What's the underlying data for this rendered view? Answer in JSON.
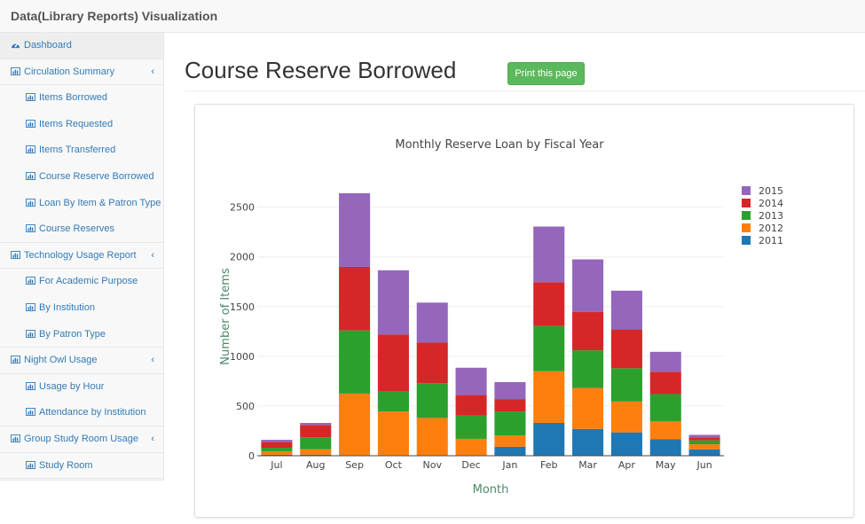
{
  "app": {
    "brand": "Data(Library Reports) Visualization"
  },
  "sidebar": {
    "items": [
      {
        "label": "Dashboard",
        "level": "top",
        "icon": "dashboard-icon"
      },
      {
        "label": "Circulation Summary",
        "level": "top",
        "icon": "bar-chart-icon",
        "caret": "‹"
      },
      {
        "label": "Items Borrowed",
        "level": "sub",
        "icon": "bar-chart-icon"
      },
      {
        "label": "Items Requested",
        "level": "sub",
        "icon": "bar-chart-icon"
      },
      {
        "label": "Items Transferred",
        "level": "sub",
        "icon": "bar-chart-icon"
      },
      {
        "label": "Course Reserve Borrowed",
        "level": "sub",
        "icon": "bar-chart-icon"
      },
      {
        "label": "Loan By Item & Patron Type",
        "level": "sub",
        "icon": "bar-chart-icon"
      },
      {
        "label": "Course Reserves",
        "level": "sub",
        "icon": "bar-chart-icon"
      },
      {
        "label": "Technology Usage Report",
        "level": "top",
        "icon": "bar-chart-icon",
        "caret": "‹"
      },
      {
        "label": "For Academic Purpose",
        "level": "sub",
        "icon": "bar-chart-icon"
      },
      {
        "label": "By Institution",
        "level": "sub",
        "icon": "bar-chart-icon"
      },
      {
        "label": "By Patron Type",
        "level": "sub",
        "icon": "bar-chart-icon"
      },
      {
        "label": "Night Owl Usage",
        "level": "top",
        "icon": "bar-chart-icon",
        "caret": "‹"
      },
      {
        "label": "Usage by Hour",
        "level": "sub",
        "icon": "bar-chart-icon"
      },
      {
        "label": "Attendance by Institution",
        "level": "sub",
        "icon": "bar-chart-icon"
      },
      {
        "label": "Group Study Room Usage",
        "level": "top",
        "icon": "bar-chart-icon",
        "caret": "‹"
      },
      {
        "label": "Study Room",
        "level": "sub",
        "icon": "bar-chart-icon"
      }
    ]
  },
  "main": {
    "title": "Course Reserve Borrowed",
    "print_label": "Print this page"
  },
  "colors": {
    "link": "#337ab7",
    "button": "#5cb85c",
    "2011": "#1f77b4",
    "2012": "#ff7f0e",
    "2013": "#2ca02c",
    "2014": "#d62728",
    "2015": "#9467bd"
  },
  "chart_data": {
    "type": "bar",
    "stacked": true,
    "title": "Monthly Reserve Loan by Fiscal Year",
    "xlabel": "Month",
    "ylabel": "Number of Items",
    "ylim": [
      0,
      2800
    ],
    "yticks": [
      0,
      500,
      1000,
      1500,
      2000,
      2500
    ],
    "grid": true,
    "legend_position": "top-right",
    "categories": [
      "Jul",
      "Aug",
      "Sep",
      "Oct",
      "Nov",
      "Dec",
      "Jan",
      "Feb",
      "Mar",
      "Apr",
      "May",
      "Jun"
    ],
    "series": [
      {
        "name": "2011",
        "color": "#1f77b4",
        "values": [
          10,
          10,
          5,
          5,
          5,
          5,
          90,
          330,
          270,
          235,
          165,
          65
        ]
      },
      {
        "name": "2012",
        "color": "#ff7f0e",
        "values": [
          35,
          55,
          620,
          440,
          375,
          165,
          115,
          520,
          410,
          310,
          180,
          50
        ]
      },
      {
        "name": "2013",
        "color": "#2ca02c",
        "values": [
          35,
          120,
          635,
          200,
          350,
          235,
          240,
          455,
          380,
          335,
          275,
          40
        ]
      },
      {
        "name": "2014",
        "color": "#d62728",
        "values": [
          60,
          125,
          640,
          575,
          410,
          205,
          125,
          440,
          385,
          390,
          225,
          30
        ]
      },
      {
        "name": "2015",
        "color": "#9467bd",
        "values": [
          20,
          20,
          740,
          645,
          400,
          275,
          170,
          560,
          530,
          390,
          200,
          25
        ]
      }
    ]
  }
}
